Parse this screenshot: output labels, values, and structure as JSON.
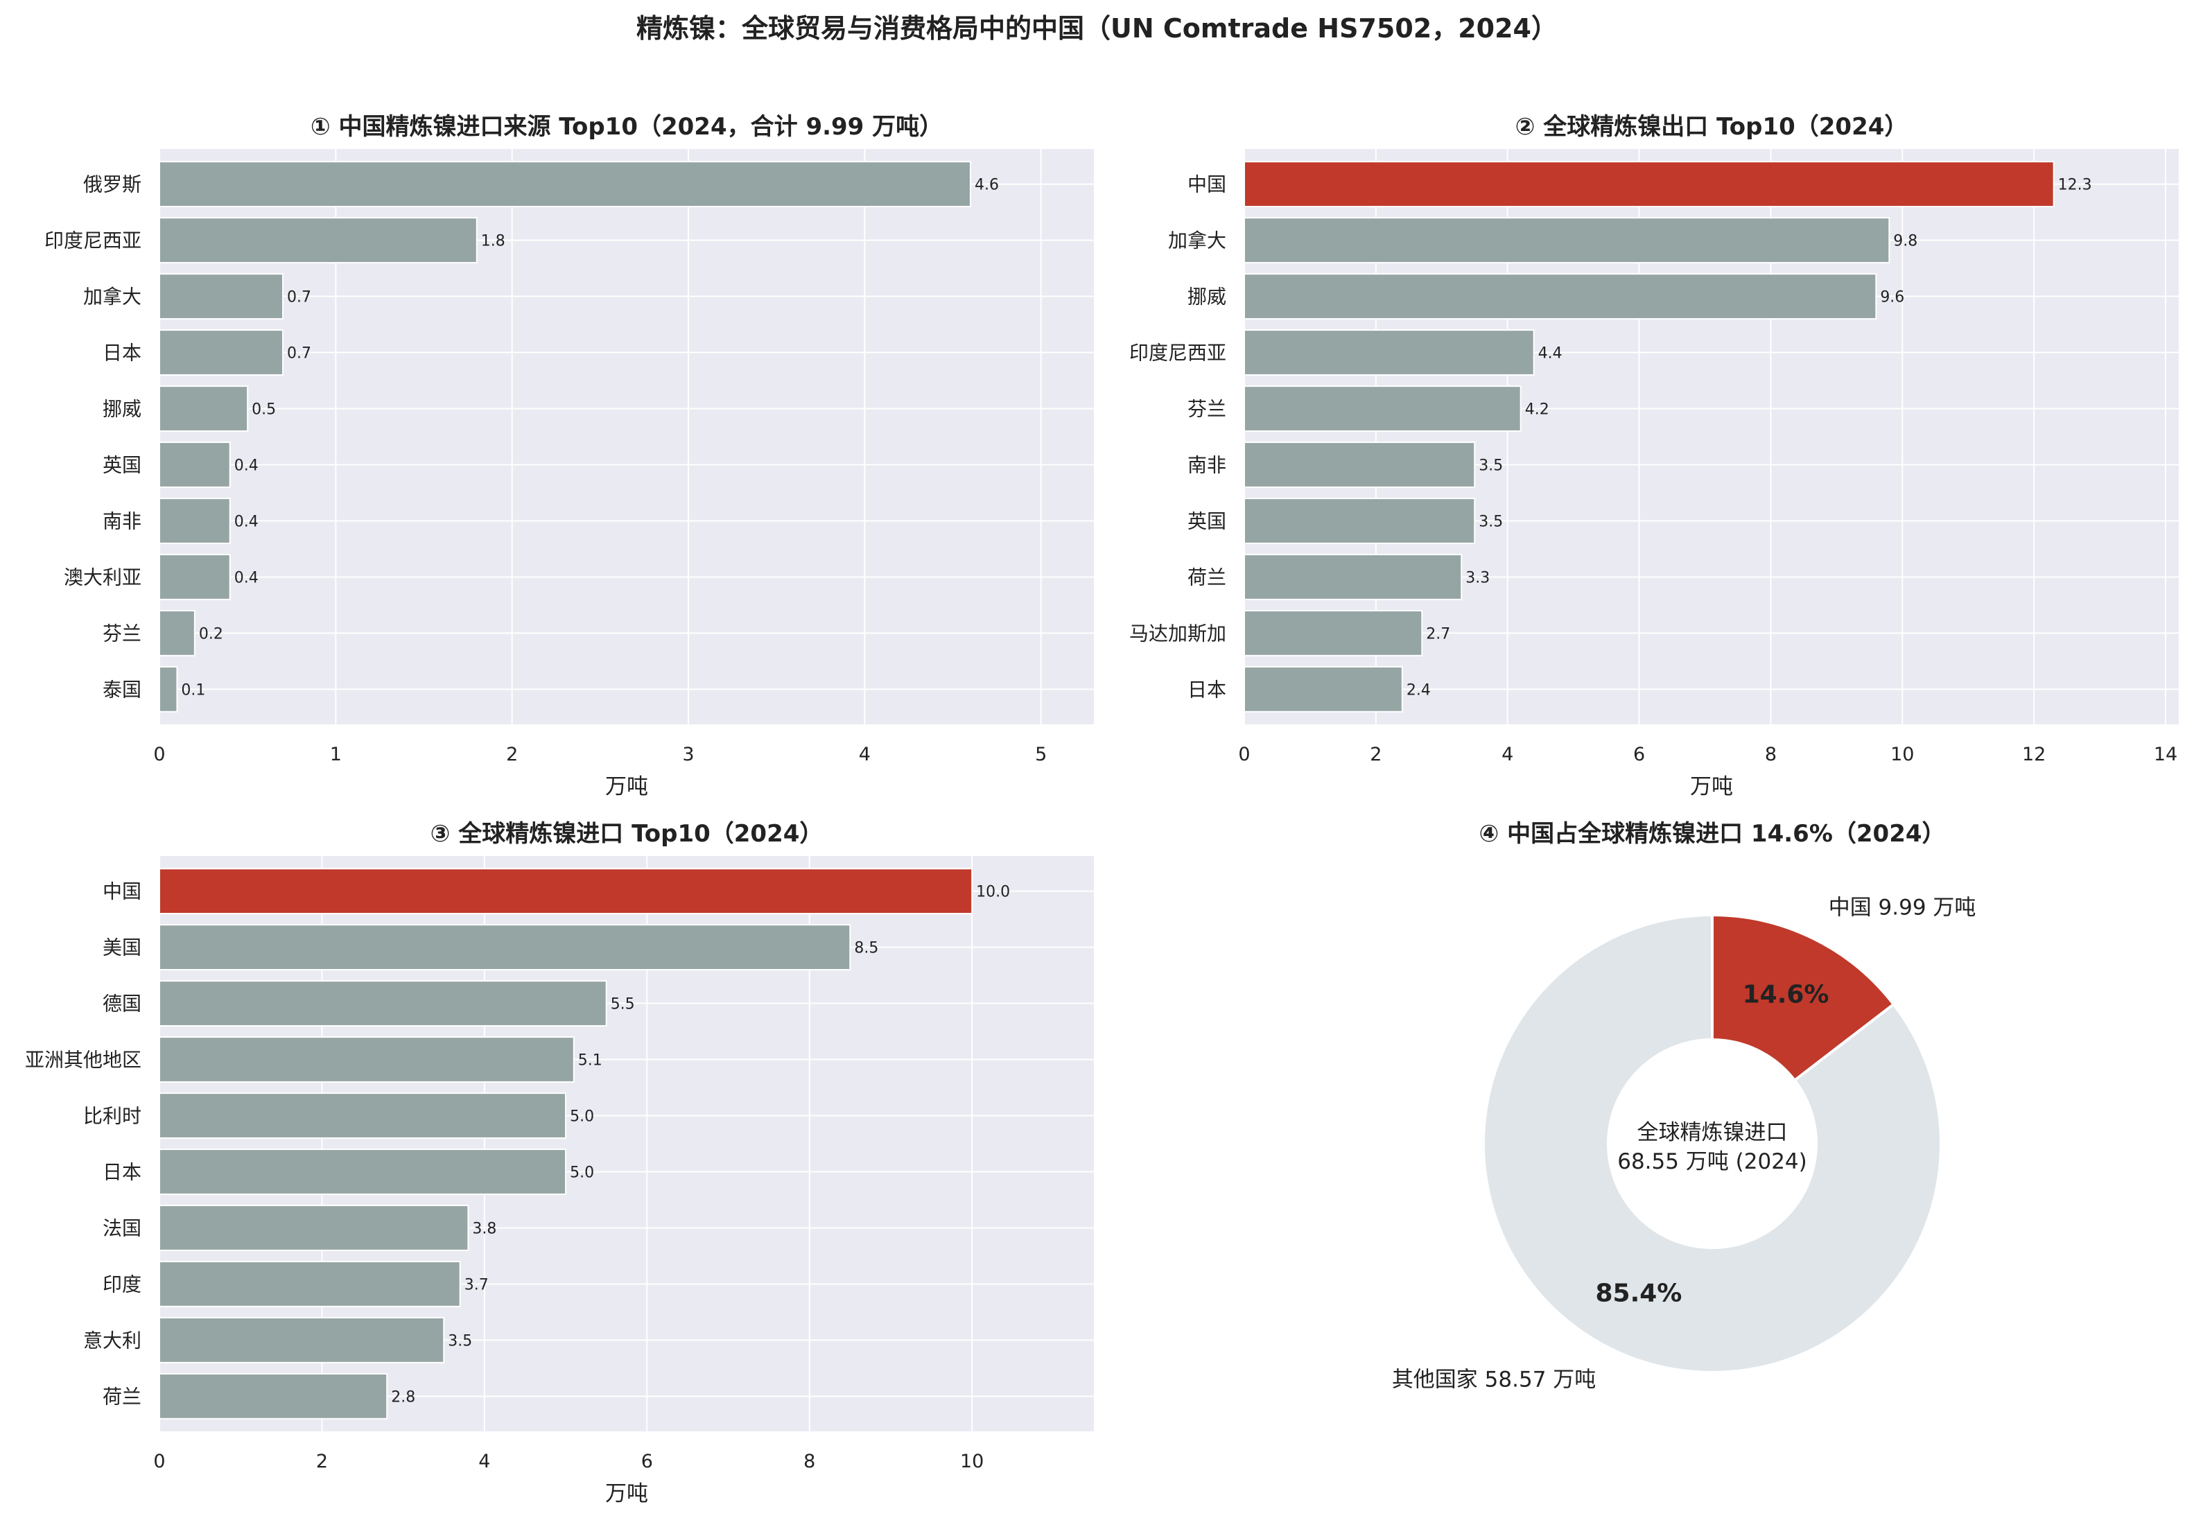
{
  "title": "精炼镍：全球贸易与消费格局中的中国（UN Comtrade HS7502，2024）",
  "colors": {
    "highlight": "#c0392b",
    "bar": "#95a5a4",
    "plot_bg": "#eaeaf2",
    "grid": "#ffffff",
    "pie_other": "#dfe5e8"
  },
  "chart_data": [
    {
      "type": "bar",
      "orientation": "horizontal",
      "title": "① 中国精炼镍进口来源 Top10（2024，合计 9.99 万吨）",
      "categories": [
        "俄罗斯",
        "印度尼西亚",
        "加拿大",
        "日本",
        "挪威",
        "英国",
        "南非",
        "澳大利亚",
        "芬兰",
        "泰国"
      ],
      "values": [
        4.6,
        1.8,
        0.7,
        0.7,
        0.5,
        0.4,
        0.4,
        0.4,
        0.2,
        0.1
      ],
      "value_labels": [
        "4.6",
        "1.8",
        "0.7",
        "0.7",
        "0.5",
        "0.4",
        "0.4",
        "0.4",
        "0.2",
        "0.1"
      ],
      "highlight": [],
      "xlabel": "万吨",
      "xlim": [
        0,
        5.3
      ],
      "xticks": [
        0,
        1,
        2,
        3,
        4,
        5
      ],
      "grid": true
    },
    {
      "type": "bar",
      "orientation": "horizontal",
      "title": "② 全球精炼镍出口 Top10（2024）",
      "categories": [
        "中国",
        "加拿大",
        "挪威",
        "印度尼西亚",
        "芬兰",
        "南非",
        "英国",
        "荷兰",
        "马达加斯加",
        "日本"
      ],
      "values": [
        12.3,
        9.8,
        9.6,
        4.4,
        4.2,
        3.5,
        3.5,
        3.3,
        2.7,
        2.4
      ],
      "value_labels": [
        "12.3",
        "9.8",
        "9.6",
        "4.4",
        "4.2",
        "3.5",
        "3.5",
        "3.3",
        "2.7",
        "2.4"
      ],
      "highlight": [
        "中国"
      ],
      "xlabel": "万吨",
      "xlim": [
        0,
        14.2
      ],
      "xticks": [
        0,
        2,
        4,
        6,
        8,
        10,
        12,
        14
      ],
      "grid": true
    },
    {
      "type": "bar",
      "orientation": "horizontal",
      "title": "③ 全球精炼镍进口 Top10（2024）",
      "categories": [
        "中国",
        "美国",
        "德国",
        "亚洲其他地区",
        "比利时",
        "日本",
        "法国",
        "印度",
        "意大利",
        "荷兰"
      ],
      "values": [
        10.0,
        8.5,
        5.5,
        5.1,
        5.0,
        5.0,
        3.8,
        3.7,
        3.5,
        2.8
      ],
      "value_labels": [
        "10.0",
        "8.5",
        "5.5",
        "5.1",
        "5.0",
        "5.0",
        "3.8",
        "3.7",
        "3.5",
        "2.8"
      ],
      "highlight": [
        "中国"
      ],
      "xlabel": "万吨",
      "xlim": [
        0,
        11.5
      ],
      "xticks": [
        0,
        2,
        4,
        6,
        8,
        10
      ],
      "grid": true
    },
    {
      "type": "pie",
      "donut": true,
      "title": "④ 中国占全球精炼镍进口 14.6%（2024）",
      "slices": [
        {
          "label": "中国 9.99 万吨",
          "value": 9.99,
          "pct_label": "14.6%",
          "color": "#c0392b"
        },
        {
          "label": "其他国家 58.57 万吨",
          "value": 58.57,
          "pct_label": "85.4%",
          "color": "#dfe5e8"
        }
      ],
      "center_text": [
        "全球精炼镍进口",
        "68.55 万吨 (2024)"
      ]
    }
  ]
}
